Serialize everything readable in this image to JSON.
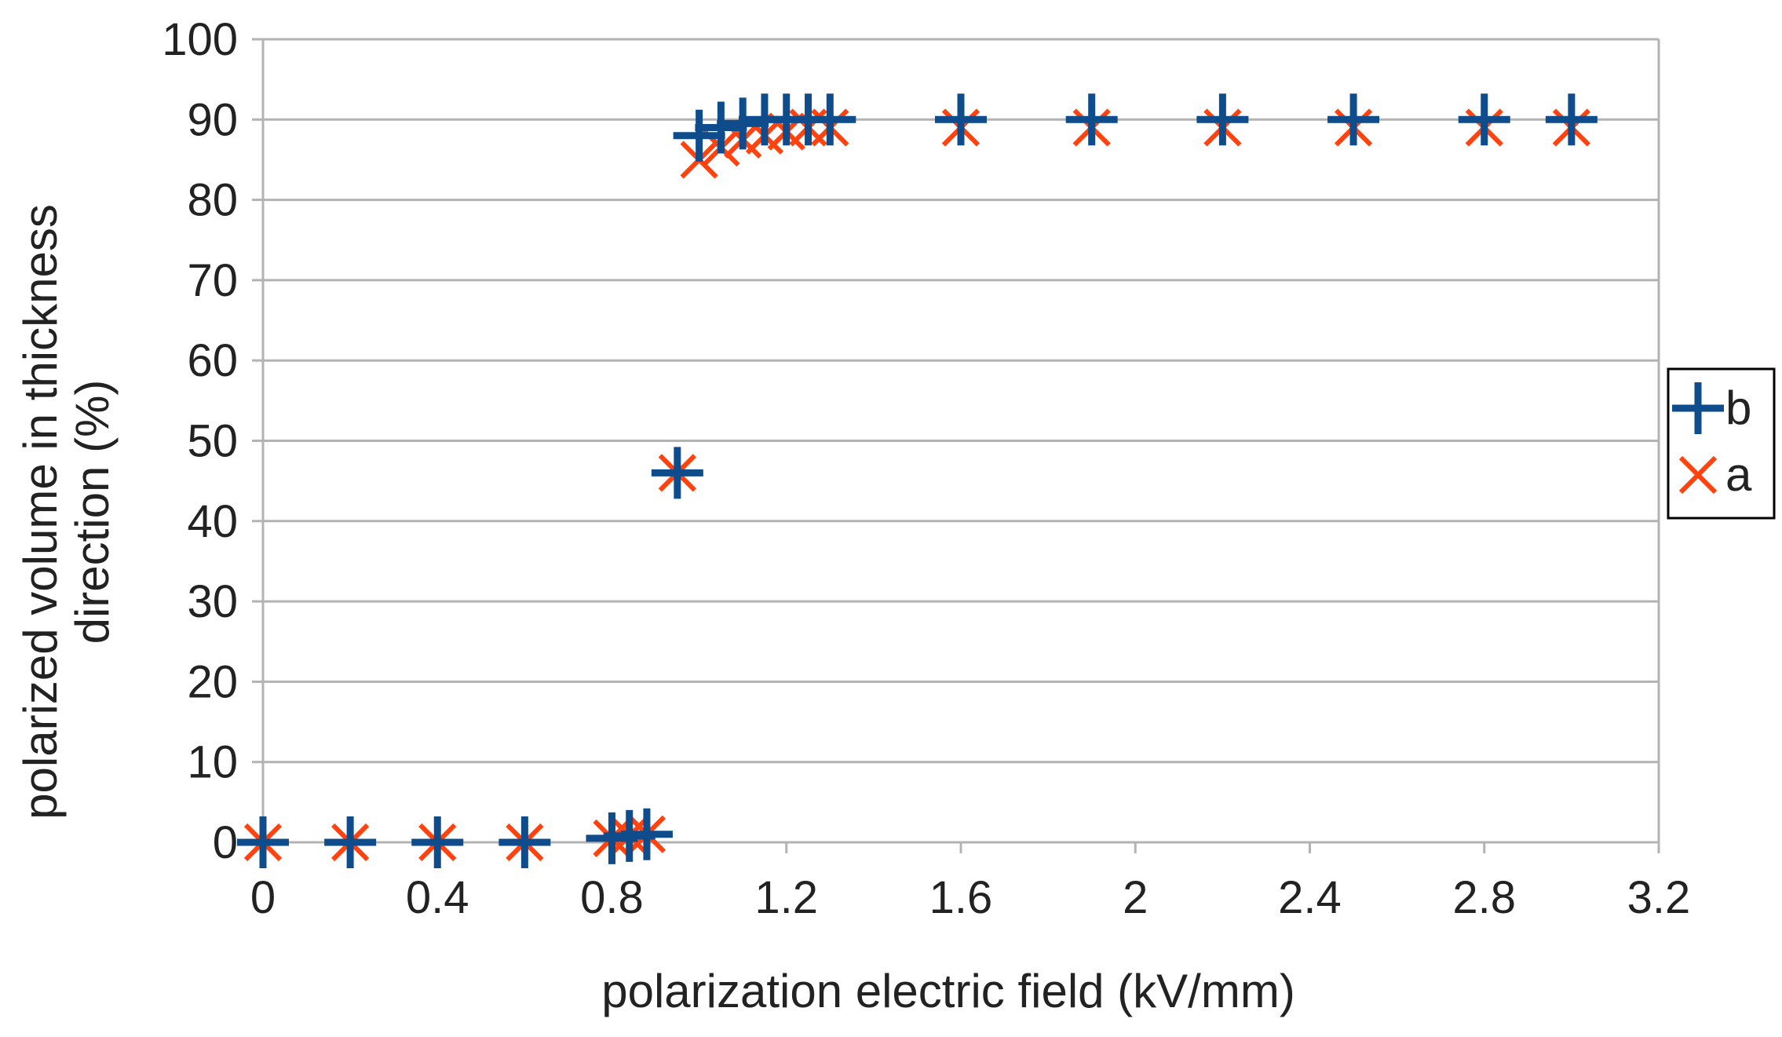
{
  "chart_data": {
    "type": "scatter",
    "title": "",
    "xlabel": "polarization electric field (kV/mm)",
    "ylabel_lines": [
      "polarized volume in thickness",
      "direction (%)"
    ],
    "xlim": [
      0,
      3.2
    ],
    "ylim": [
      0,
      100
    ],
    "x_ticks": [
      0,
      0.4,
      0.8,
      1.2,
      1.6,
      2,
      2.4,
      2.8,
      3.2
    ],
    "x_tick_labels": [
      "0",
      "0.4",
      "0.8",
      "1.2",
      "1.6",
      "2",
      "2.4",
      "2.8",
      "3.2"
    ],
    "y_ticks": [
      0,
      10,
      20,
      30,
      40,
      50,
      60,
      70,
      80,
      90,
      100
    ],
    "y_tick_labels": [
      "0",
      "10",
      "20",
      "30",
      "40",
      "50",
      "60",
      "70",
      "80",
      "90",
      "100"
    ],
    "grid": true,
    "legend_position": "right",
    "series": [
      {
        "name": "b",
        "marker": "plus",
        "color": "#0f4c8c",
        "points": [
          [
            0,
            0
          ],
          [
            0.2,
            0
          ],
          [
            0.4,
            0
          ],
          [
            0.6,
            0
          ],
          [
            0.8,
            0.5
          ],
          [
            0.84,
            0.8
          ],
          [
            0.88,
            1
          ],
          [
            0.95,
            46
          ],
          [
            1.0,
            88
          ],
          [
            1.05,
            89
          ],
          [
            1.1,
            89.5
          ],
          [
            1.15,
            90
          ],
          [
            1.2,
            90
          ],
          [
            1.25,
            90
          ],
          [
            1.3,
            90
          ],
          [
            1.6,
            90
          ],
          [
            1.9,
            90
          ],
          [
            2.2,
            90
          ],
          [
            2.5,
            90
          ],
          [
            2.8,
            90
          ],
          [
            3.0,
            90
          ]
        ]
      },
      {
        "name": "a",
        "marker": "cross",
        "color": "#ff420e",
        "points": [
          [
            0,
            0
          ],
          [
            0.2,
            0
          ],
          [
            0.4,
            0
          ],
          [
            0.6,
            0
          ],
          [
            0.8,
            0.5
          ],
          [
            0.84,
            0.8
          ],
          [
            0.88,
            1
          ],
          [
            0.95,
            46
          ],
          [
            1.0,
            85
          ],
          [
            1.05,
            86.5
          ],
          [
            1.1,
            87.5
          ],
          [
            1.15,
            88
          ],
          [
            1.2,
            88.5
          ],
          [
            1.25,
            89
          ],
          [
            1.3,
            89
          ],
          [
            1.6,
            89
          ],
          [
            1.9,
            89
          ],
          [
            2.2,
            89
          ],
          [
            2.5,
            89
          ],
          [
            2.8,
            89
          ],
          [
            3.0,
            89
          ]
        ]
      }
    ]
  }
}
